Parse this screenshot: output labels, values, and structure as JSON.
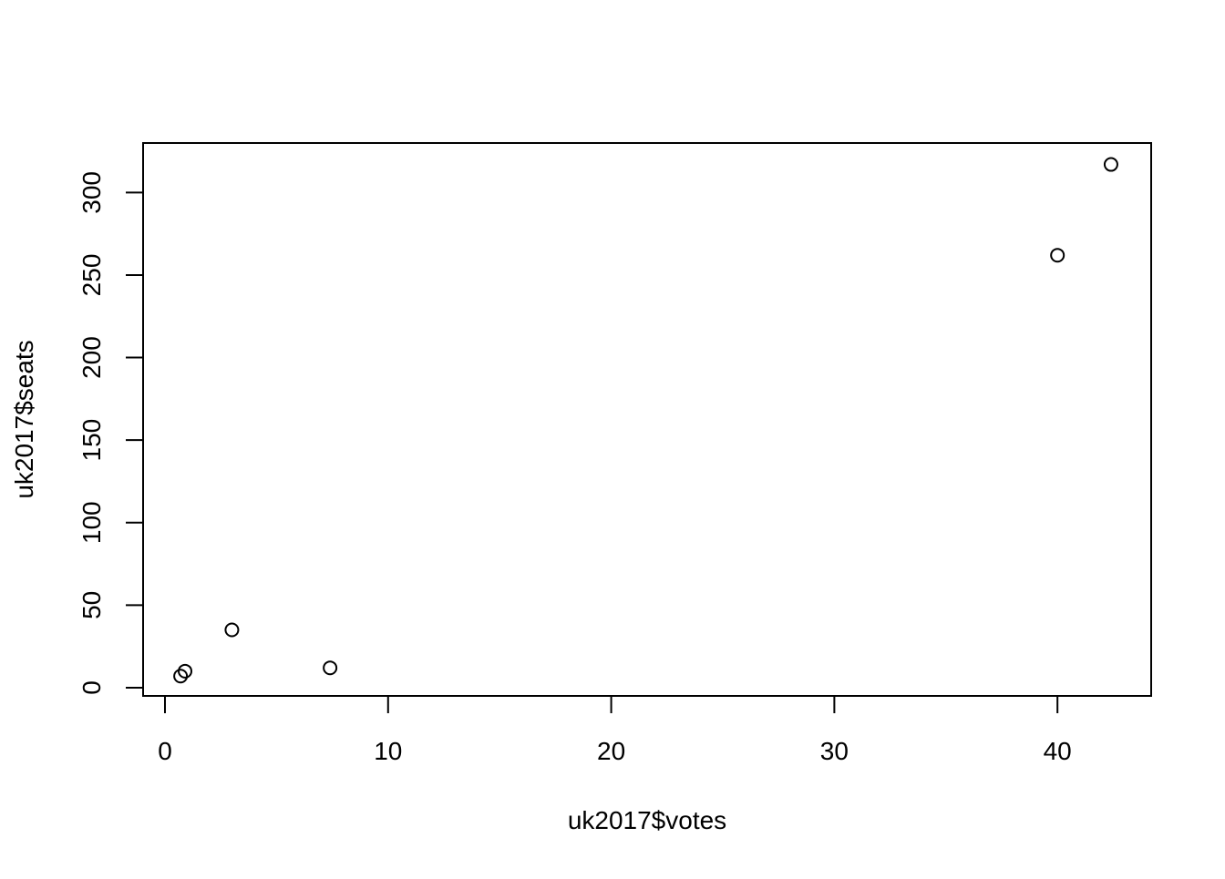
{
  "chart_data": {
    "type": "scatter",
    "title": "",
    "xlabel": "uk2017$votes",
    "ylabel": "uk2017$seats",
    "xlim": [
      -0.98,
      44.2
    ],
    "ylim": [
      -5,
      330
    ],
    "x_ticks": [
      0,
      10,
      20,
      30,
      40
    ],
    "y_ticks": [
      0,
      50,
      100,
      150,
      200,
      250,
      300
    ],
    "grid": false,
    "legend": "none",
    "marker": "open-circle",
    "series": [
      {
        "x": [
          42.4,
          40.0,
          7.4,
          3.0,
          0.9,
          0.7
        ],
        "y": [
          317,
          262,
          12,
          35,
          10,
          7
        ]
      }
    ],
    "colors": {
      "axis": "#000000",
      "marker": "#000000",
      "background": "#ffffff"
    }
  }
}
